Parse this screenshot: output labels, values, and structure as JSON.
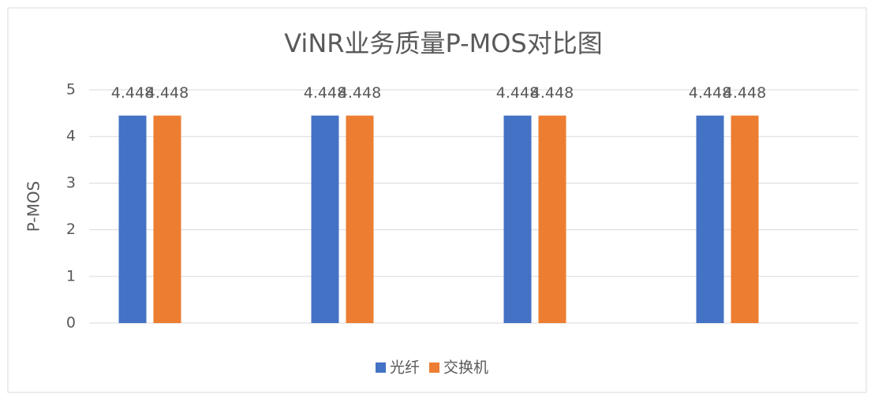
{
  "chart_data": {
    "type": "bar",
    "title": "ViNR业务质量P-MOS对比图",
    "ylabel": "P-MOS",
    "categories": [
      null,
      null,
      null,
      null
    ],
    "series": [
      {
        "name": "光纤",
        "color": "#4472c4",
        "values": [
          4.448,
          4.448,
          4.448,
          4.448
        ]
      },
      {
        "name": "交换机",
        "color": "#ed7d31",
        "values": [
          4.448,
          4.448,
          4.448,
          4.448
        ]
      }
    ],
    "ylim": [
      0,
      5
    ],
    "yticks": [
      0,
      1,
      2,
      3,
      4,
      5
    ],
    "grid": true,
    "legend": "bottom"
  }
}
